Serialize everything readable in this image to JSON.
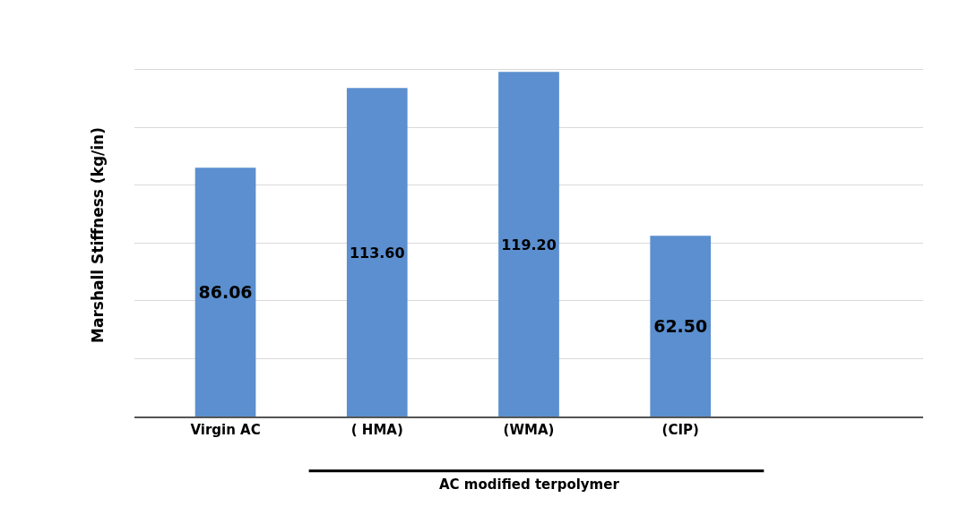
{
  "chart_data": {
    "type": "bar",
    "ylabel": "Marshall Stiffness (kg/in)",
    "categories": [
      "Virgin AC",
      "( HMA)",
      "(WMA)",
      "(CIP)"
    ],
    "values": [
      86.06,
      113.6,
      119.2,
      62.5
    ],
    "value_labels": [
      "86.06",
      "113.60",
      "119.20",
      "62.50"
    ],
    "color": "#5b8fcf",
    "grid": "y",
    "tick_labels": "x",
    "annotations": [
      "AC modified terpolymer"
    ]
  }
}
